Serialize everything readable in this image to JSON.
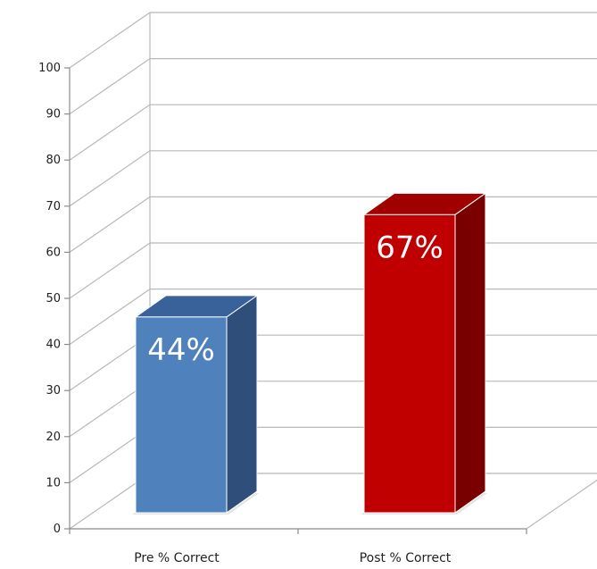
{
  "chart_data": {
    "type": "bar",
    "categories": [
      "Pre % Correct",
      "Post % Correct"
    ],
    "values": [
      44,
      67
    ],
    "data_labels": [
      "44%",
      "67%"
    ],
    "ylim": [
      0,
      100
    ],
    "yticks": [
      0,
      10,
      20,
      30,
      40,
      50,
      60,
      70,
      80,
      90,
      100
    ],
    "grid": true,
    "style": "3d-column",
    "colors": {
      "series": [
        {
          "front": "#4f81bd",
          "side": "#2f4f7a",
          "top": "#39619a"
        },
        {
          "front": "#c00000",
          "side": "#7a0000",
          "top": "#a00000"
        }
      ],
      "gridline": "#b8b8b8",
      "axis": "#8c8c8c"
    }
  }
}
